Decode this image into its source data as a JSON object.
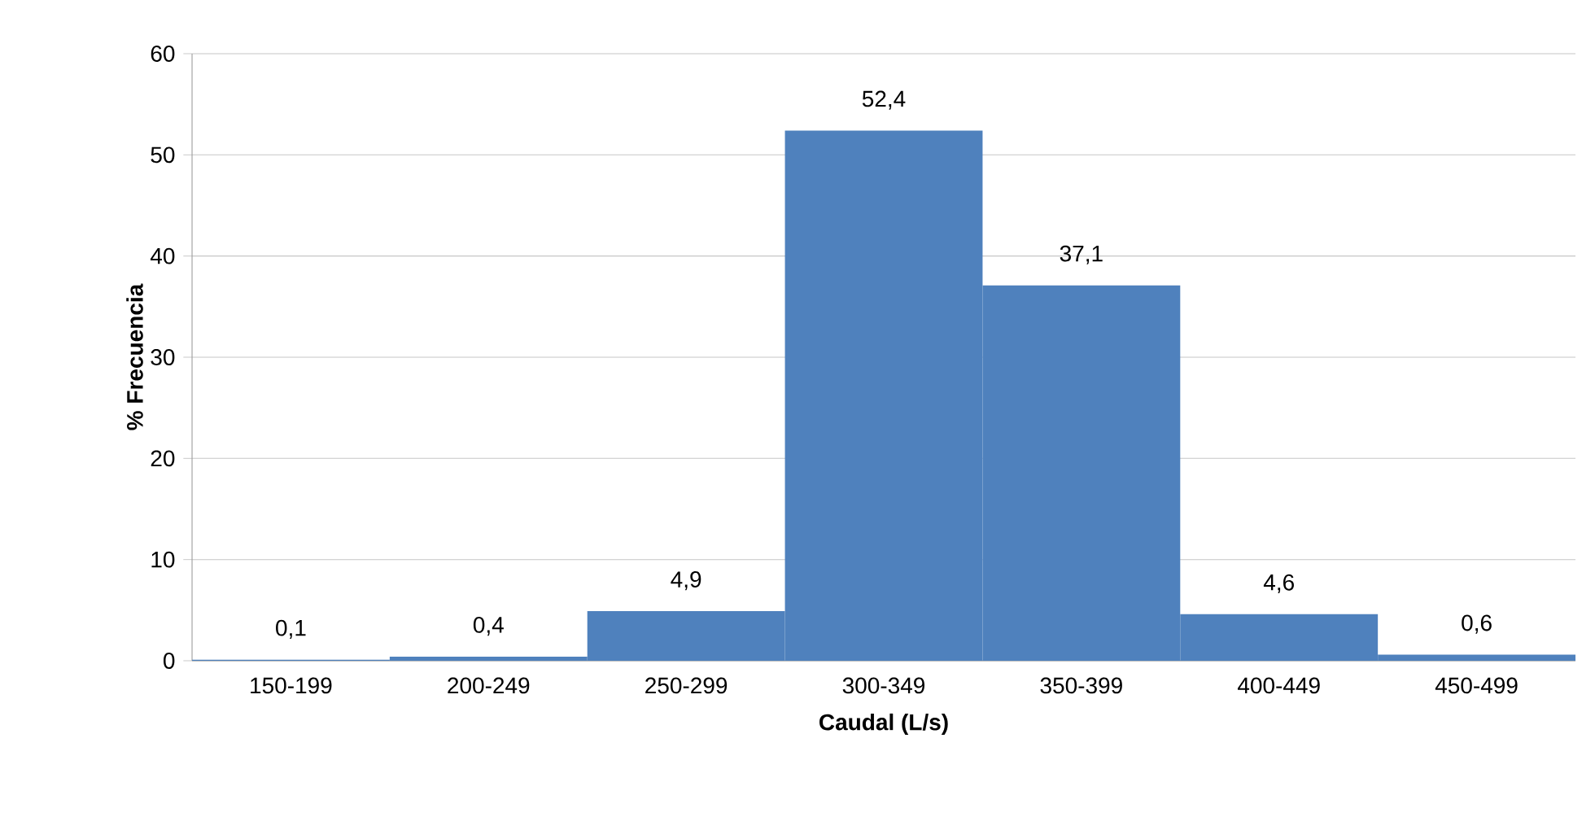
{
  "chart_data": {
    "type": "bar",
    "xlabel": "Caudal (L/s)",
    "ylabel": "% Frecuencia",
    "categories": [
      "150-199",
      "200-249",
      "250-299",
      "300-349",
      "350-399",
      "400-449",
      "450-499"
    ],
    "values": [
      0.1,
      0.4,
      4.9,
      52.4,
      37.1,
      4.6,
      0.6
    ],
    "value_labels": [
      "0,1",
      "0,4",
      "4,9",
      "52,4",
      "37,1",
      "4,6",
      "0,6"
    ],
    "color": "#4f81bd",
    "ylim": [
      0,
      60
    ],
    "yticks": [
      0,
      10,
      20,
      30,
      40,
      50,
      60
    ],
    "grid": "y"
  }
}
